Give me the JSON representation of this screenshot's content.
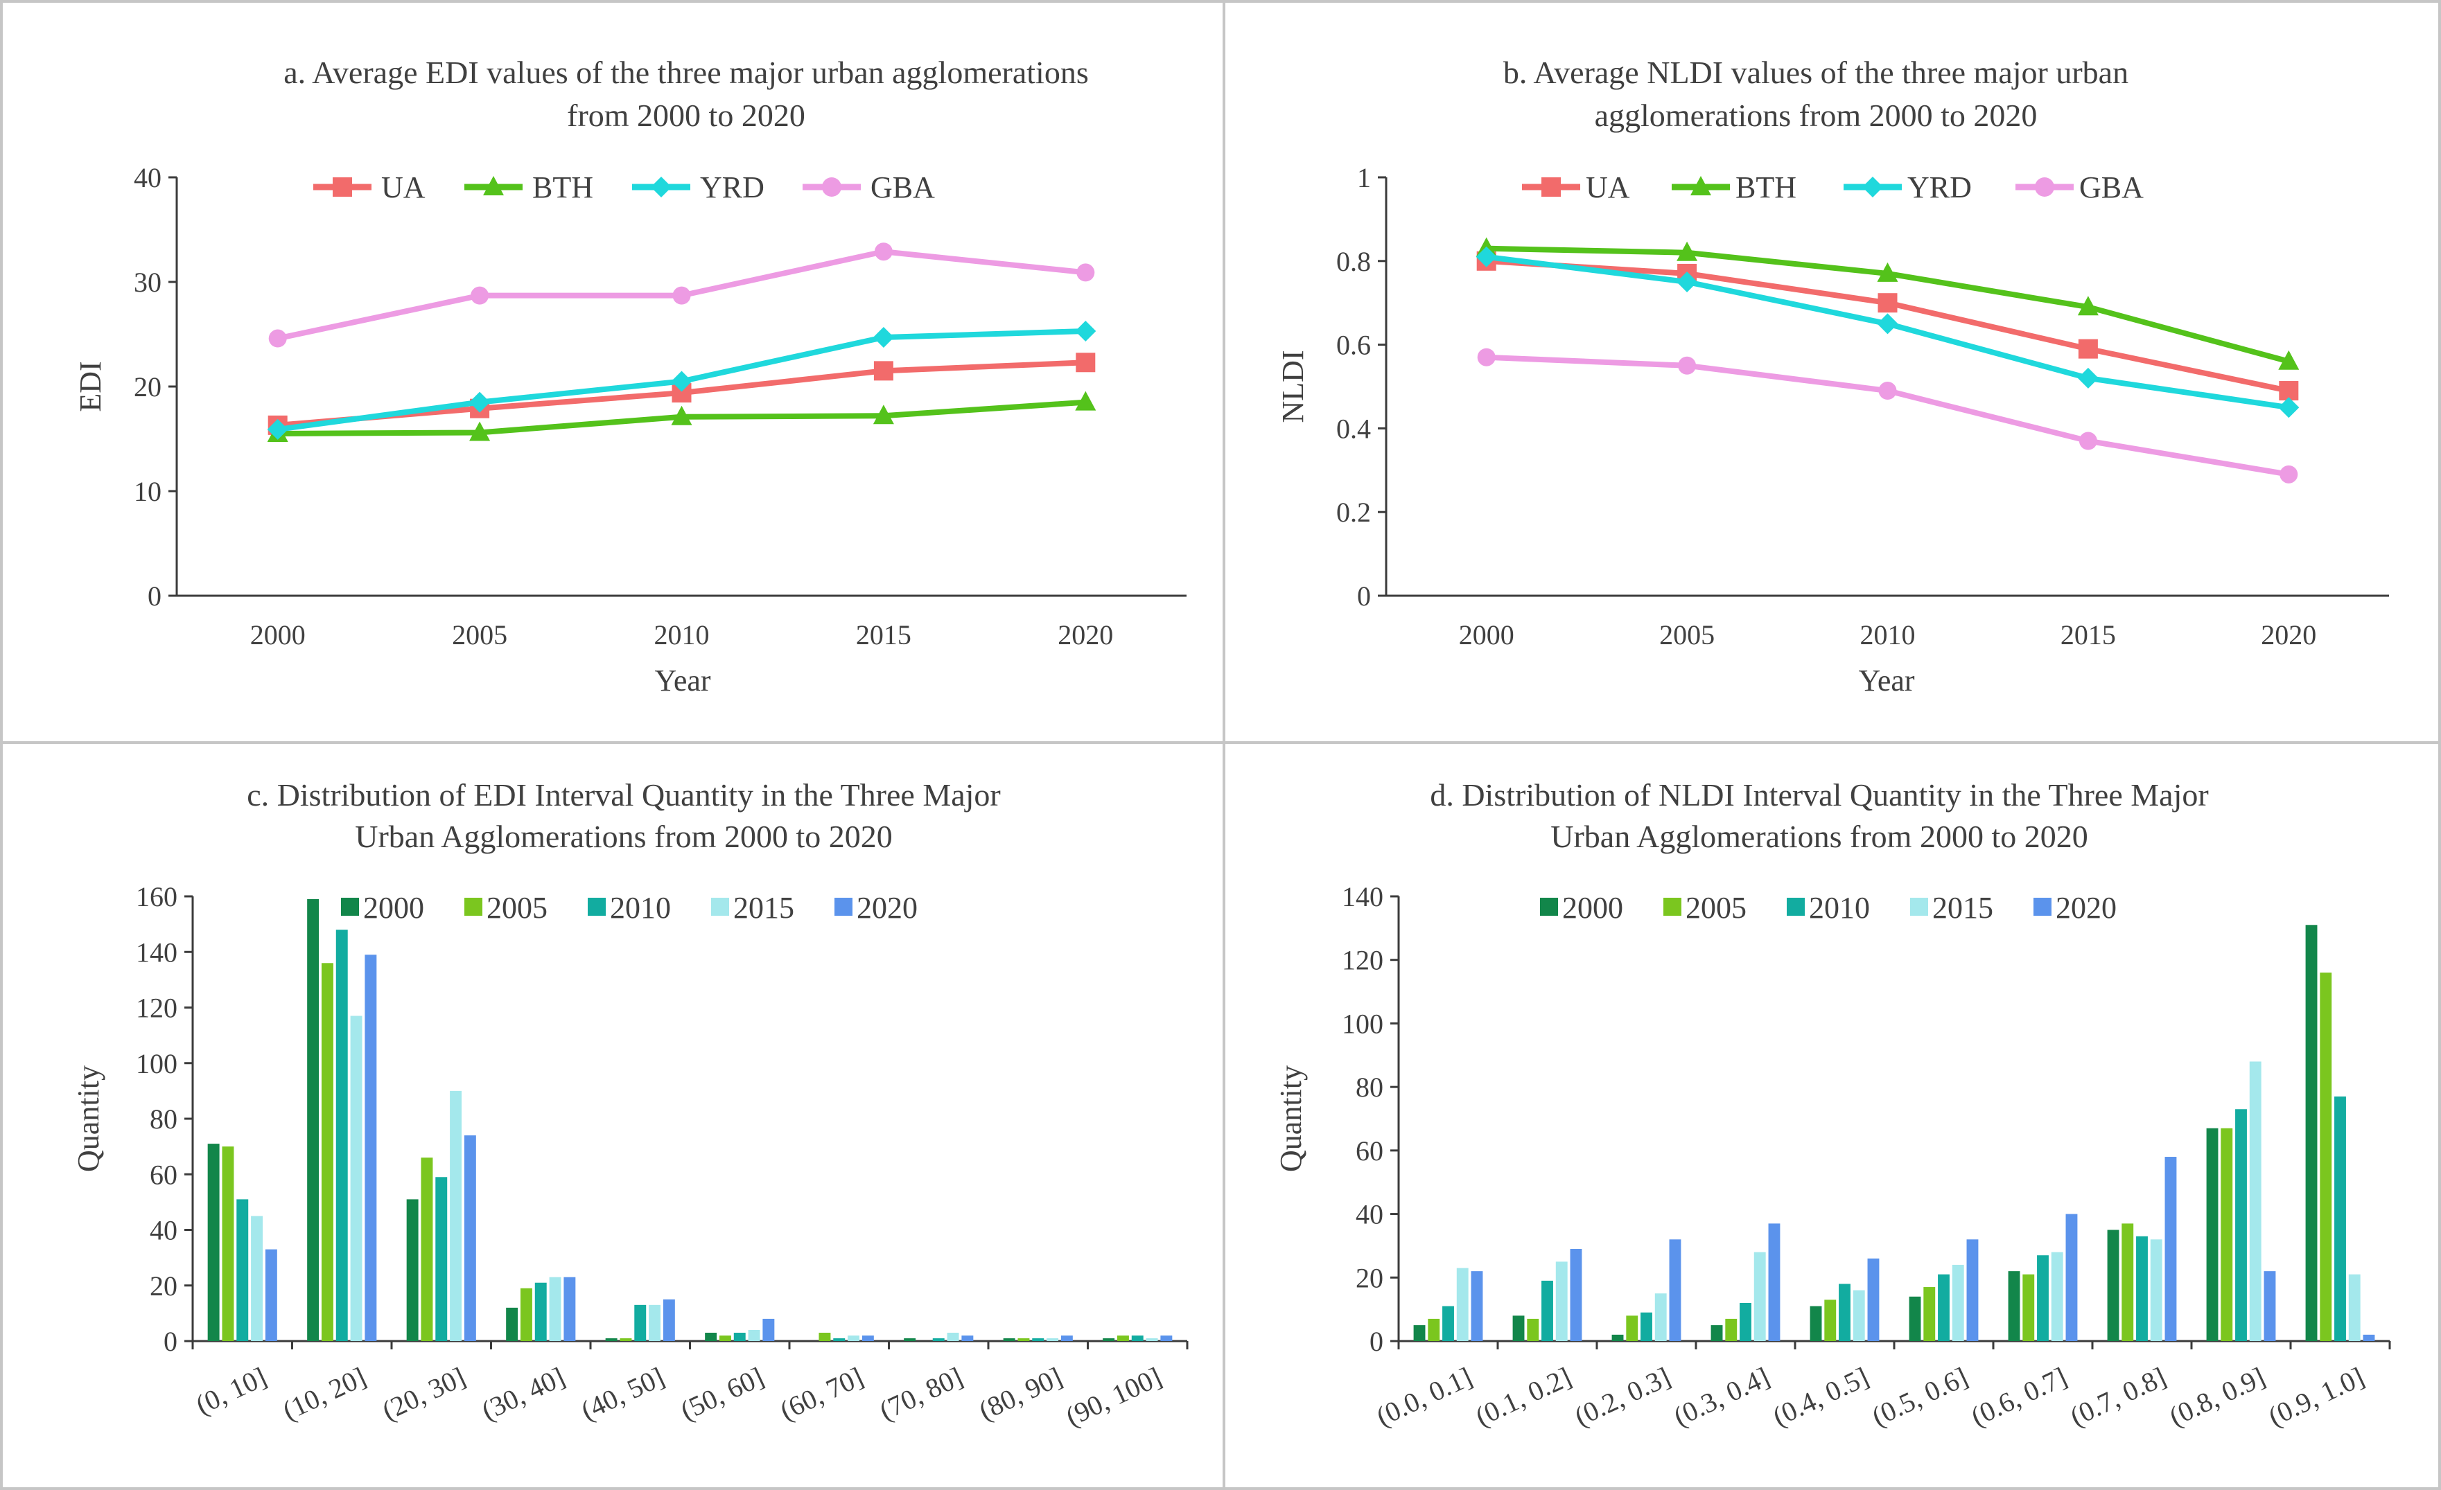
{
  "colors": {
    "UA": "#f26b6b",
    "BTH": "#54c21b",
    "YRD": "#1fd8dc",
    "GBA": "#ed9be3",
    "2000": "#12864a",
    "2005": "#7bc61f",
    "2010": "#12aca0",
    "2015": "#a4e8ec",
    "2020": "#5b93ec"
  },
  "chart_data": [
    {
      "id": "a",
      "type": "line",
      "title": [
        "a. Average EDI values of the three major urban agglomerations",
        "from 2000 to 2020"
      ],
      "xlabel": "Year",
      "ylabel": "EDI",
      "x": [
        "2000",
        "2005",
        "2010",
        "2015",
        "2020"
      ],
      "ylim": [
        0,
        40
      ],
      "yticks": [
        "0",
        "10",
        "20",
        "30",
        "40"
      ],
      "grid": false,
      "legend": "top",
      "series": [
        {
          "name": "UA",
          "marker": "square",
          "values": [
            16.3,
            17.9,
            19.4,
            21.5,
            22.3
          ]
        },
        {
          "name": "BTH",
          "marker": "triangle",
          "values": [
            15.5,
            15.6,
            17.1,
            17.2,
            18.5
          ]
        },
        {
          "name": "YRD",
          "marker": "diamond",
          "values": [
            15.9,
            18.5,
            20.5,
            24.7,
            25.3
          ]
        },
        {
          "name": "GBA",
          "marker": "circle",
          "values": [
            24.6,
            28.7,
            28.7,
            32.9,
            30.9
          ]
        }
      ]
    },
    {
      "id": "b",
      "type": "line",
      "title": [
        "b. Average NLDI values of the three major urban",
        "agglomerations from 2000 to 2020"
      ],
      "xlabel": "Year",
      "ylabel": "NLDI",
      "x": [
        "2000",
        "2005",
        "2010",
        "2015",
        "2020"
      ],
      "ylim": [
        0,
        1
      ],
      "yticks": [
        "0",
        "0.2",
        "0.4",
        "0.6",
        "0.8",
        "1"
      ],
      "grid": false,
      "legend": "top",
      "series": [
        {
          "name": "UA",
          "marker": "square",
          "values": [
            0.8,
            0.77,
            0.7,
            0.59,
            0.49
          ]
        },
        {
          "name": "BTH",
          "marker": "triangle",
          "values": [
            0.83,
            0.82,
            0.77,
            0.69,
            0.56
          ]
        },
        {
          "name": "YRD",
          "marker": "diamond",
          "values": [
            0.81,
            0.75,
            0.65,
            0.52,
            0.45
          ]
        },
        {
          "name": "GBA",
          "marker": "circle",
          "values": [
            0.57,
            0.55,
            0.49,
            0.37,
            0.29
          ]
        }
      ]
    },
    {
      "id": "c",
      "type": "bar",
      "title": [
        "c. Distribution of EDI Interval Quantity in the Three Major",
        "Urban Agglomerations from 2000 to 2020"
      ],
      "xlabel": "",
      "ylabel": "Quantity",
      "categories": [
        "(0, 10]",
        "(10, 20]",
        "(20, 30]",
        "(30, 40]",
        "(40, 50]",
        "(50, 60]",
        "(60, 70]",
        "(70, 80]",
        "(80, 90]",
        "(90, 100]"
      ],
      "ylim": [
        0,
        160
      ],
      "yticks": [
        "0",
        "20",
        "40",
        "60",
        "80",
        "100",
        "120",
        "140",
        "160"
      ],
      "grid": false,
      "legend": "top",
      "series": [
        {
          "name": "2000",
          "values": [
            71,
            159,
            51,
            12,
            1,
            3,
            0,
            1,
            1,
            1
          ]
        },
        {
          "name": "2005",
          "values": [
            70,
            136,
            66,
            19,
            1,
            2,
            3,
            0,
            1,
            2
          ]
        },
        {
          "name": "2010",
          "values": [
            51,
            148,
            59,
            21,
            13,
            3,
            1,
            1,
            1,
            2
          ]
        },
        {
          "name": "2015",
          "values": [
            45,
            117,
            90,
            23,
            13,
            4,
            2,
            3,
            1,
            1
          ]
        },
        {
          "name": "2020",
          "values": [
            33,
            139,
            74,
            23,
            15,
            8,
            2,
            2,
            2,
            2
          ]
        }
      ]
    },
    {
      "id": "d",
      "type": "bar",
      "title": [
        "d. Distribution of NLDI Interval Quantity in the Three Major",
        "Urban Agglomerations from 2000 to 2020"
      ],
      "xlabel": "",
      "ylabel": "Quantity",
      "categories": [
        "(0.0, 0.1]",
        "(0.1, 0.2]",
        "(0.2, 0.3]",
        "(0.3, 0.4]",
        "(0.4, 0.5]",
        "(0.5, 0.6]",
        "(0.6, 0.7]",
        "(0.7, 0.8]",
        "(0.8, 0.9]",
        "(0.9, 1.0]"
      ],
      "ylim": [
        0,
        140
      ],
      "yticks": [
        "0",
        "20",
        "40",
        "60",
        "80",
        "100",
        "120",
        "140"
      ],
      "grid": false,
      "legend": "top",
      "series": [
        {
          "name": "2000",
          "values": [
            5,
            8,
            2,
            5,
            11,
            14,
            22,
            35,
            67,
            131
          ]
        },
        {
          "name": "2005",
          "values": [
            7,
            7,
            8,
            7,
            13,
            17,
            21,
            37,
            67,
            116
          ]
        },
        {
          "name": "2010",
          "values": [
            11,
            19,
            9,
            12,
            18,
            21,
            27,
            33,
            73,
            77
          ]
        },
        {
          "name": "2015",
          "values": [
            23,
            25,
            15,
            28,
            16,
            24,
            28,
            32,
            88,
            21
          ]
        },
        {
          "name": "2020",
          "values": [
            22,
            29,
            32,
            37,
            26,
            32,
            40,
            58,
            22,
            2
          ]
        }
      ]
    }
  ]
}
